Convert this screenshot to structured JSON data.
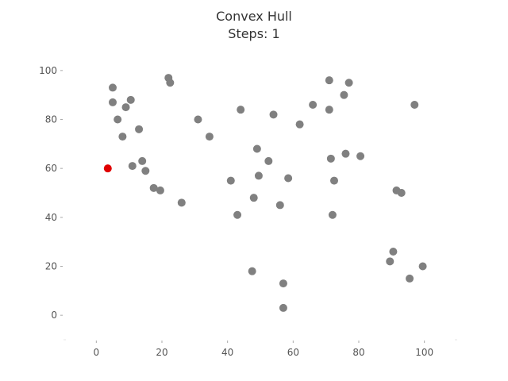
{
  "chart_data": {
    "type": "scatter",
    "title": "Convex Hull",
    "subtitle": "Steps: 1",
    "xlabel": "",
    "ylabel": "",
    "xlim": [
      -10,
      110
    ],
    "ylim": [
      -10,
      110
    ],
    "xticks": [
      0,
      20,
      40,
      60,
      80,
      100
    ],
    "yticks": [
      0,
      20,
      40,
      60,
      80,
      100
    ],
    "grid": false,
    "point_color": "#808080",
    "highlight_color": "#e00000",
    "points": [
      {
        "x": 5,
        "y": 93
      },
      {
        "x": 5,
        "y": 87
      },
      {
        "x": 6.5,
        "y": 80
      },
      {
        "x": 9,
        "y": 85
      },
      {
        "x": 10.5,
        "y": 88
      },
      {
        "x": 8,
        "y": 73
      },
      {
        "x": 13,
        "y": 76
      },
      {
        "x": 11,
        "y": 61
      },
      {
        "x": 14,
        "y": 63
      },
      {
        "x": 15,
        "y": 59
      },
      {
        "x": 17.5,
        "y": 52
      },
      {
        "x": 19.5,
        "y": 51
      },
      {
        "x": 22,
        "y": 97
      },
      {
        "x": 22.5,
        "y": 95
      },
      {
        "x": 26,
        "y": 46
      },
      {
        "x": 31,
        "y": 80
      },
      {
        "x": 34.5,
        "y": 73
      },
      {
        "x": 41,
        "y": 55
      },
      {
        "x": 43,
        "y": 41
      },
      {
        "x": 44,
        "y": 84
      },
      {
        "x": 47.5,
        "y": 18
      },
      {
        "x": 48,
        "y": 48
      },
      {
        "x": 49,
        "y": 68
      },
      {
        "x": 49.5,
        "y": 57
      },
      {
        "x": 52.5,
        "y": 63
      },
      {
        "x": 54,
        "y": 82
      },
      {
        "x": 56,
        "y": 45
      },
      {
        "x": 57,
        "y": 13
      },
      {
        "x": 57,
        "y": 3
      },
      {
        "x": 58.5,
        "y": 56
      },
      {
        "x": 62,
        "y": 78
      },
      {
        "x": 66,
        "y": 86
      },
      {
        "x": 71,
        "y": 84
      },
      {
        "x": 71,
        "y": 96
      },
      {
        "x": 71.5,
        "y": 64
      },
      {
        "x": 72,
        "y": 41
      },
      {
        "x": 72.5,
        "y": 55
      },
      {
        "x": 75.5,
        "y": 90
      },
      {
        "x": 76,
        "y": 66
      },
      {
        "x": 77,
        "y": 95
      },
      {
        "x": 80.5,
        "y": 65
      },
      {
        "x": 89.5,
        "y": 22
      },
      {
        "x": 90.5,
        "y": 26
      },
      {
        "x": 91.5,
        "y": 51
      },
      {
        "x": 93,
        "y": 50
      },
      {
        "x": 95.5,
        "y": 15
      },
      {
        "x": 97,
        "y": 86
      },
      {
        "x": 99.5,
        "y": 20
      }
    ],
    "highlighted_points": [
      {
        "x": 3.5,
        "y": 60
      }
    ]
  }
}
